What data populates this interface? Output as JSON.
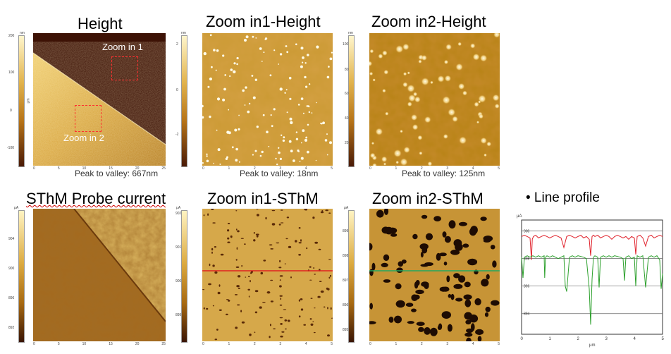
{
  "titles": {
    "height": "Height",
    "zoom1_height": "Zoom in1-Height",
    "zoom2_height": "Zoom in2-Height",
    "sthm": "SThM Probe current",
    "zoom1_sthm": "Zoom in1-SThM",
    "zoom2_sthm": "Zoom in2-SThM",
    "line_profile": "• Line profile"
  },
  "peak_to_valley": {
    "height": "Peak to valley: 667nm",
    "zoom1": "Peak to valley: 18nm",
    "zoom2": "Peak to valley: 125nm"
  },
  "overlay_labels": {
    "zoom_in_1": "Zoom in 1",
    "zoom_in_2": "Zoom in 2"
  },
  "colorbars": {
    "height": {
      "unit": "nm",
      "ticks": [
        "200",
        "100",
        "0",
        "-100"
      ]
    },
    "zoom1_height": {
      "unit": "nm",
      "ticks": [
        "2",
        "0",
        "-2"
      ]
    },
    "zoom2_height": {
      "unit": "nm",
      "ticks": [
        "100",
        "80",
        "60",
        "40",
        "20"
      ]
    },
    "sthm": {
      "unit": "μA",
      "ticks": [
        "904",
        "900",
        "896",
        "892"
      ]
    },
    "zoom1_sthm": {
      "unit": "μA",
      "ticks": [
        "902",
        "901",
        "900",
        "899"
      ]
    },
    "zoom2_sthm": {
      "unit": "μA",
      "ticks": [
        "899",
        "898",
        "897",
        "896",
        "895"
      ]
    }
  },
  "axis_unit": "μm",
  "axes": {
    "large": [
      "0",
      "5",
      "10",
      "15",
      "20",
      "25"
    ],
    "small": [
      "0",
      "1",
      "2",
      "3",
      "4",
      "5"
    ],
    "large_y": [
      "20",
      "15",
      "10",
      "5"
    ],
    "small_y": [
      "4",
      "3",
      "2",
      "1"
    ]
  },
  "chart_data": {
    "type": "line",
    "title": "",
    "xlabel": "μm",
    "ylabel": "μA",
    "xlim": [
      0,
      5
    ],
    "ylim": [
      892.5,
      900.8
    ],
    "x_ticks": [
      "0",
      "1",
      "2",
      "3",
      "4",
      "5"
    ],
    "y_ticks": [
      "900",
      "898",
      "896",
      "894"
    ],
    "grid": true,
    "series": [
      {
        "color": "#e0202a",
        "x": [
          0.0,
          0.1,
          0.2,
          0.3,
          0.35,
          0.38,
          0.42,
          0.5,
          0.6,
          0.7,
          0.8,
          0.9,
          1.0,
          1.1,
          1.2,
          1.3,
          1.4,
          1.5,
          1.6,
          1.7,
          1.8,
          1.9,
          2.0,
          2.1,
          2.2,
          2.3,
          2.4,
          2.45,
          2.5,
          2.55,
          2.6,
          2.7,
          2.8,
          2.9,
          3.0,
          3.1,
          3.2,
          3.3,
          3.4,
          3.5,
          3.6,
          3.7,
          3.8,
          3.9,
          4.0,
          4.05,
          4.1,
          4.2,
          4.3,
          4.4,
          4.5,
          4.6,
          4.7,
          4.8,
          4.9,
          5.0
        ],
        "values": [
          899.6,
          899.7,
          899.6,
          899.5,
          897.9,
          899.4,
          899.6,
          899.7,
          899.5,
          899.6,
          899.7,
          899.6,
          899.5,
          899.6,
          899.7,
          899.6,
          899.5,
          898.8,
          899.6,
          899.7,
          899.6,
          899.5,
          899.6,
          899.7,
          899.5,
          899.6,
          899.4,
          898.2,
          899.6,
          899.7,
          899.6,
          899.7,
          899.5,
          899.6,
          899.7,
          899.6,
          899.4,
          899.6,
          899.7,
          899.6,
          899.5,
          899.6,
          899.4,
          899.6,
          899.5,
          898.3,
          899.6,
          899.7,
          899.5,
          898.9,
          899.6,
          899.7,
          899.5,
          899.6,
          899.7,
          899.6
        ]
      },
      {
        "color": "#2ca02c",
        "x": [
          0.0,
          0.05,
          0.1,
          0.2,
          0.3,
          0.4,
          0.5,
          0.6,
          0.7,
          0.8,
          0.82,
          0.85,
          0.9,
          1.0,
          1.1,
          1.2,
          1.3,
          1.5,
          1.55,
          1.6,
          1.7,
          1.8,
          1.9,
          2.0,
          2.2,
          2.3,
          2.4,
          2.45,
          2.5,
          2.55,
          2.6,
          2.7,
          2.75,
          2.8,
          2.9,
          3.0,
          3.1,
          3.2,
          3.3,
          3.5,
          3.6,
          3.65,
          3.7,
          3.8,
          3.9,
          4.0,
          4.05,
          4.1,
          4.2,
          4.3,
          4.4,
          4.5,
          4.6,
          4.7,
          4.8,
          4.9,
          4.95,
          5.0
        ],
        "values": [
          898.1,
          896.6,
          898.1,
          898.2,
          898.1,
          898.2,
          898.1,
          898.2,
          898.1,
          898.2,
          896.6,
          898.1,
          898.2,
          898.1,
          898.2,
          898.1,
          898.0,
          898.2,
          896.0,
          895.6,
          898.1,
          898.2,
          898.1,
          898.2,
          898.1,
          898.0,
          895.8,
          893.2,
          896.5,
          898.1,
          898.2,
          898.1,
          895.9,
          898.1,
          898.2,
          898.1,
          898.2,
          898.1,
          898.2,
          898.1,
          898.0,
          896.4,
          898.1,
          898.2,
          898.0,
          898.1,
          896.0,
          898.2,
          898.1,
          898.2,
          895.9,
          898.1,
          898.2,
          898.1,
          898.2,
          897.9,
          895.8,
          896.9
        ]
      }
    ]
  }
}
